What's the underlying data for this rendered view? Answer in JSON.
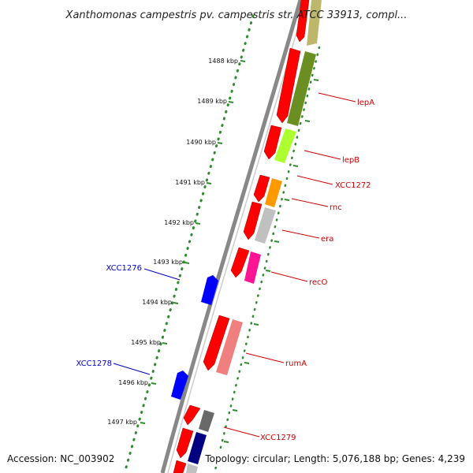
{
  "title": "Xanthomonas campestris pv. campestris str. ATCC 33913, compl...",
  "footer": {
    "accession": "Accession: NC_003902",
    "summary": "Topology: circular; Length: 5,076,188 bp; Genes: 4,239"
  },
  "ruler": {
    "ticks": [
      "1488 kbp",
      "1489 kbp",
      "1490 kbp",
      "1491 kbp",
      "1492 kbp",
      "1493 kbp",
      "1494 kbp",
      "1495 kbp",
      "1496 kbp",
      "1497 kbp"
    ]
  },
  "genes": {
    "right": [
      "lepA",
      "lepB",
      "XCC1272",
      "rnc",
      "era",
      "recO",
      "rumA",
      "XCC1279"
    ],
    "left": [
      "XCC1276",
      "XCC1278"
    ]
  },
  "colors": {
    "forward_cds": "#ff0000",
    "left_label": "#0000cc",
    "right_label": "#cc0000",
    "reverse_blue": "#0000ff",
    "ruler_dots": "#2e8b2e",
    "backbone": "#888888"
  }
}
